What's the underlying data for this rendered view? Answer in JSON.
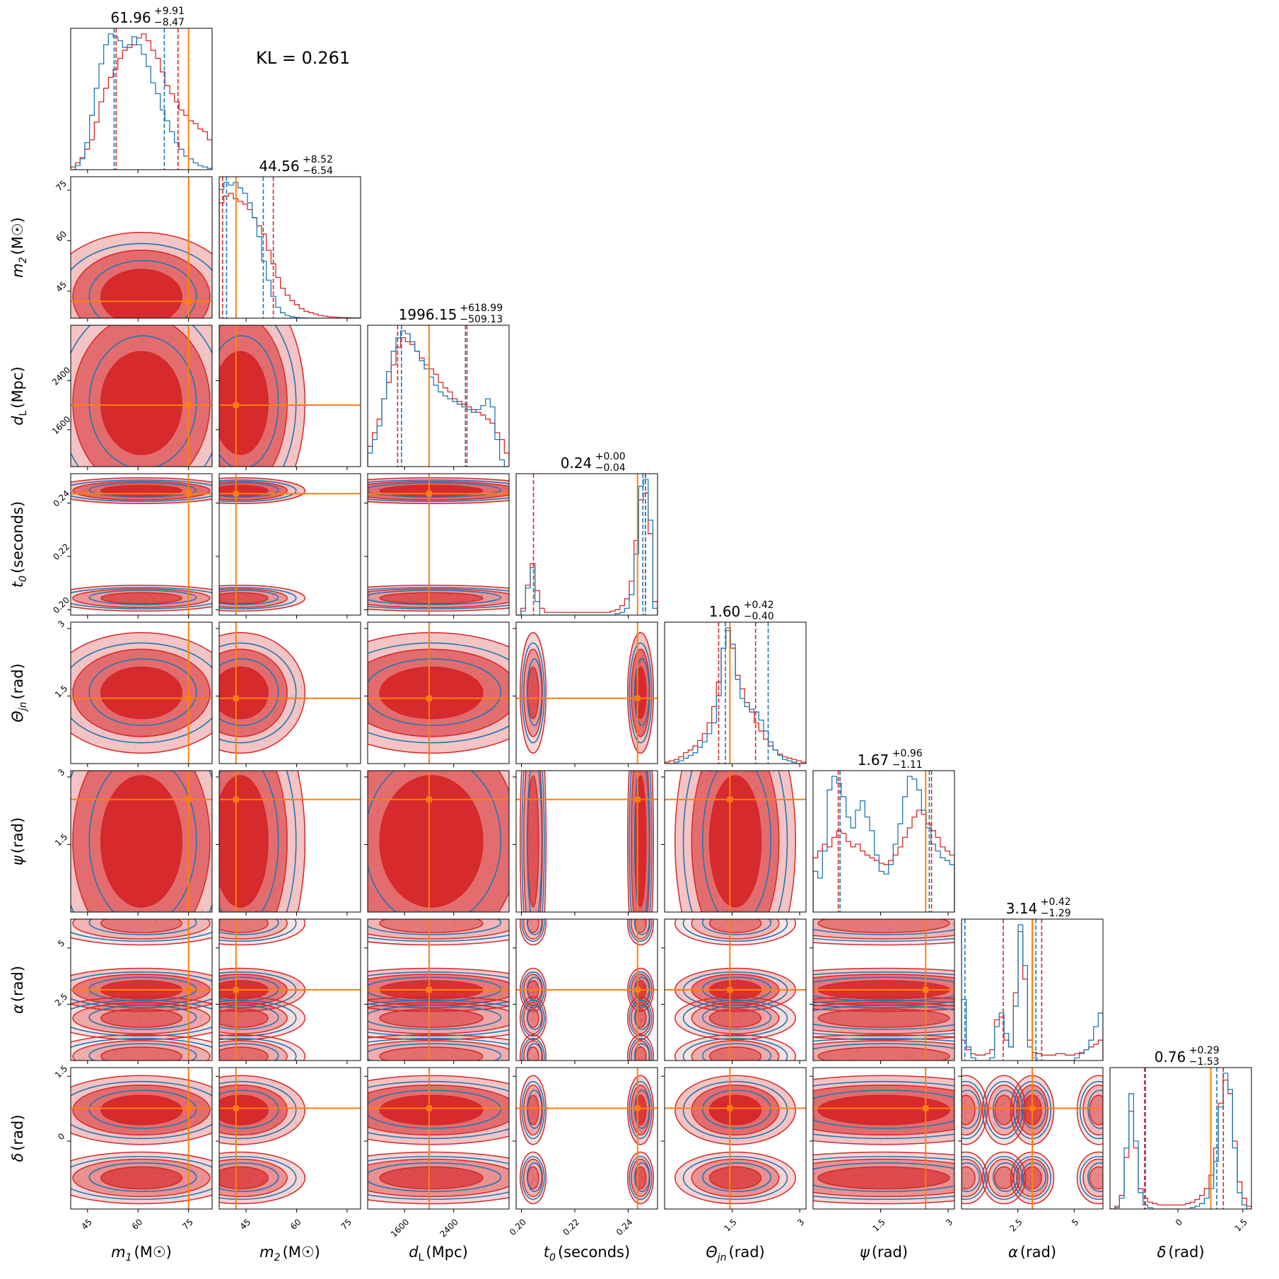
{
  "chart_data": {
    "type": "corner",
    "annotation": "KL = 0.261",
    "colors": {
      "red": "#d62728",
      "blue": "#1f77b4",
      "truth": "#ff7f0e"
    },
    "parameters": [
      {
        "key": "m1",
        "label_main": "m",
        "label_sub": "1",
        "label_unit": "(M☉)",
        "title_value": "61.96",
        "title_plus": "+9.91",
        "title_minus": "−8.47",
        "range": [
          40,
          82
        ],
        "ticks": [
          45,
          60,
          75
        ],
        "truth": 75.0,
        "hist_red": [
          0.02,
          0.05,
          0.09,
          0.15,
          0.22,
          0.35,
          0.5,
          0.6,
          0.68,
          0.74,
          0.82,
          0.88,
          0.9,
          0.92,
          0.97,
          1.0,
          0.95,
          0.88,
          0.82,
          0.72,
          0.62,
          0.56,
          0.5,
          0.44,
          0.4,
          0.36,
          0.34,
          0.3,
          0.28,
          0.22
        ],
        "hist_blue": [
          0.0,
          0.03,
          0.08,
          0.2,
          0.4,
          0.6,
          0.78,
          0.92,
          1.0,
          0.98,
          0.95,
          0.9,
          0.92,
          0.98,
          0.92,
          0.85,
          0.76,
          0.64,
          0.56,
          0.44,
          0.36,
          0.28,
          0.2,
          0.15,
          0.1,
          0.08,
          0.05,
          0.03,
          0.02,
          0.01
        ],
        "red_q": [
          53.49,
          71.87
        ],
        "blue_q": [
          52.9,
          67.8
        ]
      },
      {
        "key": "m2",
        "label_main": "m",
        "label_sub": "2",
        "label_unit": "(M☉)",
        "title_value": "44.56",
        "title_plus": "+8.52",
        "title_minus": "−6.54",
        "range": [
          37,
          79
        ],
        "ticks": [
          45,
          60,
          75
        ],
        "truth": 42.0,
        "hist_red": [
          0.85,
          0.9,
          0.92,
          0.88,
          0.86,
          0.84,
          0.8,
          0.74,
          0.68,
          0.62,
          0.5,
          0.4,
          0.3,
          0.22,
          0.17,
          0.13,
          0.1,
          0.07,
          0.05,
          0.04,
          0.03,
          0.02,
          0.015,
          0.01,
          0.008,
          0.005,
          0.004,
          0.003,
          0.002,
          0.001
        ],
        "hist_blue": [
          0.95,
          1.0,
          0.98,
          1.0,
          0.96,
          0.92,
          0.85,
          0.74,
          0.6,
          0.42,
          0.28,
          0.16,
          0.08,
          0.04,
          0.02,
          0.01,
          0.005,
          0.002,
          0.001,
          0.0,
          0.0,
          0.0,
          0.0,
          0.0,
          0.0,
          0.0,
          0.0,
          0.0,
          0.0,
          0.0
        ],
        "red_q": [
          38.02,
          53.08
        ],
        "blue_q": [
          39.2,
          50.1
        ]
      },
      {
        "key": "dL",
        "label_main": "d",
        "label_sub": "L",
        "label_unit": "(Mpc)",
        "title_value": "1996.15",
        "title_plus": "+618.99",
        "title_minus": "−509.13",
        "range": [
          1000,
          3300
        ],
        "ticks": [
          1600,
          2400
        ],
        "truth": 2000,
        "hist_red": [
          0.15,
          0.25,
          0.35,
          0.5,
          0.62,
          0.75,
          0.88,
          0.95,
          0.92,
          0.9,
          0.85,
          0.8,
          0.75,
          0.72,
          0.68,
          0.62,
          0.58,
          0.55,
          0.5,
          0.48,
          0.46,
          0.44,
          0.42,
          0.4,
          0.38,
          0.35,
          0.32,
          0.25,
          0.2,
          0.1
        ],
        "hist_blue": [
          0.1,
          0.2,
          0.3,
          0.5,
          0.7,
          0.85,
          0.95,
          1.0,
          0.98,
          0.92,
          0.85,
          0.78,
          0.72,
          0.66,
          0.6,
          0.55,
          0.52,
          0.5,
          0.48,
          0.46,
          0.44,
          0.42,
          0.4,
          0.42,
          0.45,
          0.5,
          0.44,
          0.2,
          0.05,
          0.0
        ],
        "red_q": [
          1487.02,
          2615.14
        ],
        "blue_q": [
          1550,
          2590
        ]
      },
      {
        "key": "t0",
        "label_main": "t",
        "label_sub": "0",
        "label_unit": "(seconds)",
        "title_value": "0.24",
        "title_plus": "+0.00",
        "title_minus": "−0.04",
        "range": [
          0.198,
          0.251
        ],
        "ticks": [
          0.2,
          0.22,
          0.24
        ],
        "truth": 0.2435,
        "hist_red": [
          0.0,
          0.05,
          0.22,
          0.38,
          0.18,
          0.05,
          0.02,
          0.02,
          0.02,
          0.02,
          0.02,
          0.02,
          0.02,
          0.02,
          0.02,
          0.02,
          0.02,
          0.02,
          0.02,
          0.02,
          0.03,
          0.04,
          0.07,
          0.12,
          0.25,
          0.55,
          0.85,
          0.9,
          0.6,
          0.1
        ],
        "hist_blue": [
          0.0,
          0.03,
          0.2,
          0.35,
          0.1,
          0.0,
          0.0,
          0.0,
          0.0,
          0.0,
          0.0,
          0.0,
          0.0,
          0.0,
          0.0,
          0.0,
          0.0,
          0.0,
          0.0,
          0.0,
          0.0,
          0.01,
          0.02,
          0.05,
          0.15,
          0.45,
          0.95,
          1.0,
          0.7,
          0.05
        ],
        "red_q": [
          0.2045,
          0.2465
        ],
        "blue_q": [
          0.2455,
          0.2465
        ]
      },
      {
        "key": "theta",
        "label_main": "Θ",
        "label_sub": "jn",
        "label_unit": "(rad)",
        "title_value": "1.60",
        "title_plus": "+0.42",
        "title_minus": "−0.40",
        "range": [
          0.0,
          3.14
        ],
        "ticks": [
          1.5,
          3.0
        ],
        "truth": 1.45,
        "hist_red": [
          0.01,
          0.02,
          0.03,
          0.05,
          0.08,
          0.1,
          0.13,
          0.17,
          0.22,
          0.3,
          0.42,
          0.6,
          0.85,
          0.98,
          0.85,
          0.65,
          0.55,
          0.45,
          0.38,
          0.3,
          0.24,
          0.18,
          0.13,
          0.1,
          0.07,
          0.05,
          0.04,
          0.03,
          0.02,
          0.01
        ],
        "hist_blue": [
          0.0,
          0.0,
          0.01,
          0.02,
          0.04,
          0.06,
          0.08,
          0.12,
          0.16,
          0.22,
          0.3,
          0.5,
          0.85,
          1.0,
          0.88,
          0.62,
          0.48,
          0.42,
          0.4,
          0.38,
          0.32,
          0.24,
          0.16,
          0.1,
          0.06,
          0.03,
          0.02,
          0.01,
          0.0,
          0.0
        ],
        "red_q": [
          1.2,
          2.02
        ],
        "blue_q": [
          1.35,
          2.3
        ]
      },
      {
        "key": "psi",
        "label_main": "ψ",
        "label_sub": "",
        "label_unit": "(rad)",
        "title_value": "1.67",
        "title_plus": "+0.96",
        "title_minus": "−1.11",
        "range": [
          0.0,
          3.14
        ],
        "ticks": [
          1.5,
          3.0
        ],
        "truth": 2.5,
        "hist_red": [
          0.4,
          0.45,
          0.5,
          0.48,
          0.55,
          0.6,
          0.58,
          0.52,
          0.48,
          0.5,
          0.45,
          0.42,
          0.4,
          0.38,
          0.36,
          0.35,
          0.38,
          0.42,
          0.48,
          0.55,
          0.62,
          0.7,
          0.75,
          0.72,
          0.65,
          0.6,
          0.55,
          0.48,
          0.45,
          0.42
        ],
        "hist_blue": [
          0.3,
          0.25,
          0.45,
          0.9,
          1.0,
          0.95,
          0.85,
          0.7,
          0.62,
          0.75,
          0.82,
          0.7,
          0.6,
          0.42,
          0.3,
          0.28,
          0.35,
          0.5,
          0.65,
          0.85,
          1.0,
          0.98,
          0.9,
          0.75,
          0.62,
          0.5,
          0.45,
          0.4,
          0.38,
          0.35
        ],
        "red_q": [
          0.56,
          2.63
        ],
        "blue_q": [
          0.6,
          2.58
        ]
      },
      {
        "key": "alpha",
        "label_main": "α",
        "label_sub": "",
        "label_unit": "(rad)",
        "title_value": "3.14",
        "title_plus": "+0.42",
        "title_minus": "−1.29",
        "range": [
          0.0,
          6.28
        ],
        "ticks": [
          2.5,
          5.0
        ],
        "truth": 3.14,
        "hist_red": [
          0.15,
          0.08,
          0.05,
          0.04,
          0.04,
          0.05,
          0.08,
          0.3,
          0.32,
          0.15,
          0.1,
          0.5,
          0.95,
          0.6,
          0.15,
          0.06,
          0.05,
          0.04,
          0.04,
          0.04,
          0.05,
          0.05,
          0.04,
          0.04,
          0.05,
          0.06,
          0.08,
          0.1,
          0.12,
          0.15
        ],
        "hist_blue": [
          0.45,
          0.1,
          0.02,
          0.0,
          0.0,
          0.0,
          0.02,
          0.25,
          0.35,
          0.2,
          0.1,
          0.4,
          1.0,
          0.7,
          0.1,
          0.02,
          0.0,
          0.0,
          0.0,
          0.0,
          0.0,
          0.0,
          0.0,
          0.0,
          0.02,
          0.05,
          0.08,
          0.15,
          0.25,
          0.35
        ],
        "red_q": [
          1.85,
          3.56
        ],
        "blue_q": [
          0.15,
          3.3
        ]
      },
      {
        "key": "delta",
        "label_main": "δ",
        "label_sub": "",
        "label_unit": "(rad)",
        "title_value": "0.76",
        "title_plus": "+0.29",
        "title_minus": "−1.53",
        "range": [
          -1.57,
          1.7
        ],
        "ticks": [
          0.0,
          1.5
        ],
        "truth": 0.76,
        "hist_red": [
          0.0,
          0.02,
          0.1,
          0.38,
          0.72,
          0.45,
          0.15,
          0.08,
          0.05,
          0.04,
          0.03,
          0.03,
          0.03,
          0.03,
          0.03,
          0.03,
          0.04,
          0.05,
          0.07,
          0.1,
          0.15,
          0.25,
          0.45,
          0.78,
          0.95,
          0.85,
          0.5,
          0.2,
          0.08,
          0.02
        ],
        "hist_blue": [
          0.0,
          0.01,
          0.08,
          0.45,
          0.85,
          0.5,
          0.12,
          0.03,
          0.01,
          0.0,
          0.0,
          0.0,
          0.0,
          0.0,
          0.0,
          0.0,
          0.0,
          0.01,
          0.02,
          0.04,
          0.08,
          0.15,
          0.35,
          0.75,
          1.0,
          0.88,
          0.45,
          0.12,
          0.03,
          0.0
        ],
        "red_q": [
          -0.77,
          1.05
        ],
        "blue_q": [
          -0.75,
          0.9
        ]
      }
    ]
  }
}
